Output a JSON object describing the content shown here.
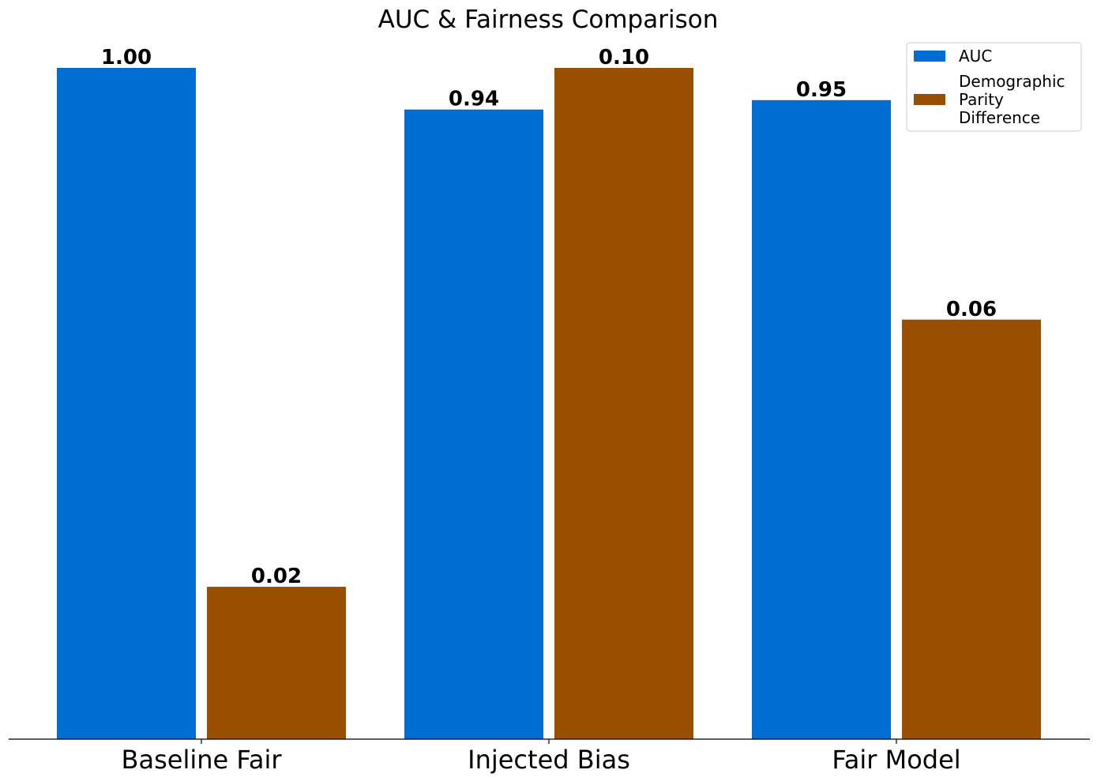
{
  "chart_data": {
    "type": "bar",
    "title": "AUC & Fairness Comparison",
    "categories": [
      "Baseline Fair",
      "Injected Bias",
      "Fair Model"
    ],
    "series": [
      {
        "name": "AUC",
        "values": [
          1.0,
          0.938,
          0.952
        ],
        "labels": [
          "1.00",
          "0.94",
          "0.95"
        ],
        "color": "#006dd2"
      },
      {
        "name": "Demographic Parity Difference",
        "name_lines": [
          "Demographic",
          "Parity",
          "Difference"
        ],
        "values": [
          0.0227,
          0.1,
          0.0625
        ],
        "labels": [
          "0.02",
          "0.10",
          "0.06"
        ],
        "color": "#984f00"
      }
    ],
    "per_series_scale": true,
    "xlabel": "",
    "ylabel": "",
    "y_axis_visible": false,
    "grid": false,
    "legend_position": "top-right"
  }
}
